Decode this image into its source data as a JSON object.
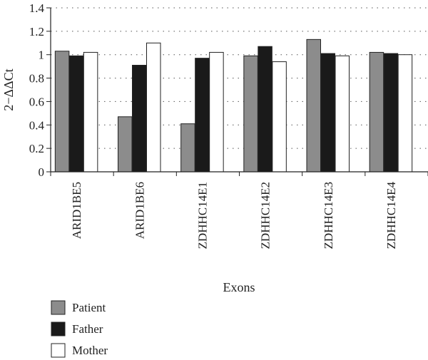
{
  "chart_data": {
    "type": "bar",
    "ylabel": "2−ΔΔCt",
    "xlabel": "Exons",
    "ylim": [
      0,
      1.4
    ],
    "yticks": [
      "0",
      "0.2",
      "0.4",
      "0.6",
      "0.8",
      "1",
      "1.2",
      "1.4"
    ],
    "grid": "horizontal dotted",
    "legend": "below",
    "categories": [
      "ARID1BE5",
      "ARID1BE6",
      "ZDHHC14E1",
      "ZDHHC14E2",
      "ZDHHC14E3",
      "ZDHHC14E4"
    ],
    "series": [
      {
        "name": "Patient",
        "color": "#8c8c8c",
        "values": [
          1.03,
          0.47,
          0.41,
          0.99,
          1.13,
          1.02
        ]
      },
      {
        "name": "Father",
        "color": "#1a1a1a",
        "values": [
          0.99,
          0.91,
          0.97,
          1.07,
          1.01,
          1.01
        ]
      },
      {
        "name": "Mother",
        "color": "#ffffff",
        "values": [
          1.02,
          1.1,
          1.02,
          0.94,
          0.99,
          1.0
        ]
      }
    ]
  }
}
